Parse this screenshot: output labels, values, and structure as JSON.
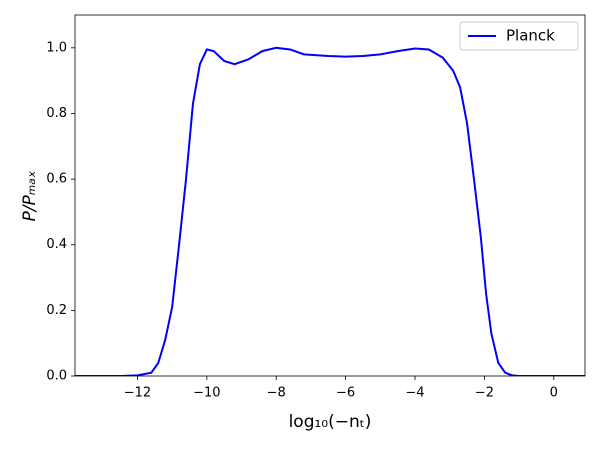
{
  "chart_data": {
    "type": "line",
    "xlabel": "log₁₀(−nₜ)",
    "ylabel": "P/Pₘₐₓ",
    "x": [
      -13.8,
      -12.5,
      -12.0,
      -11.6,
      -11.4,
      -11.2,
      -11.0,
      -10.8,
      -10.6,
      -10.4,
      -10.2,
      -10.0,
      -9.8,
      -9.5,
      -9.2,
      -8.8,
      -8.4,
      -8.0,
      -7.6,
      -7.2,
      -6.5,
      -6.0,
      -5.5,
      -5.0,
      -4.5,
      -4.0,
      -3.6,
      -3.2,
      -2.9,
      -2.7,
      -2.5,
      -2.3,
      -2.1,
      -1.95,
      -1.8,
      -1.6,
      -1.4,
      -1.2,
      -1.0,
      0.9
    ],
    "series": [
      {
        "name": "Planck",
        "color": "#0000ff",
        "values": [
          0,
          0,
          0.002,
          0.01,
          0.04,
          0.11,
          0.21,
          0.4,
          0.6,
          0.83,
          0.95,
          0.995,
          0.99,
          0.96,
          0.95,
          0.965,
          0.99,
          1.0,
          0.995,
          0.98,
          0.975,
          0.973,
          0.975,
          0.98,
          0.99,
          0.998,
          0.995,
          0.97,
          0.93,
          0.88,
          0.77,
          0.6,
          0.42,
          0.25,
          0.13,
          0.04,
          0.01,
          0.002,
          0,
          0
        ]
      }
    ],
    "xlim": [
      -13.8,
      0.9
    ],
    "ylim": [
      0,
      1.1
    ],
    "xticks": [
      {
        "value": -12,
        "label": "−12"
      },
      {
        "value": -10,
        "label": "−10"
      },
      {
        "value": -8,
        "label": "−8"
      },
      {
        "value": -6,
        "label": "−6"
      },
      {
        "value": -4,
        "label": "−4"
      },
      {
        "value": -2,
        "label": "−2"
      },
      0
    ],
    "yticks": [
      {
        "value": 0,
        "label": "0.0"
      },
      {
        "value": 0.2,
        "label": "0.2"
      },
      {
        "value": 0.4,
        "label": "0.4"
      },
      {
        "value": 0.6,
        "label": "0.6"
      },
      {
        "value": 0.8,
        "label": "0.8"
      },
      {
        "value": 1.0,
        "label": "1.0"
      }
    ],
    "legend": "upper right"
  }
}
